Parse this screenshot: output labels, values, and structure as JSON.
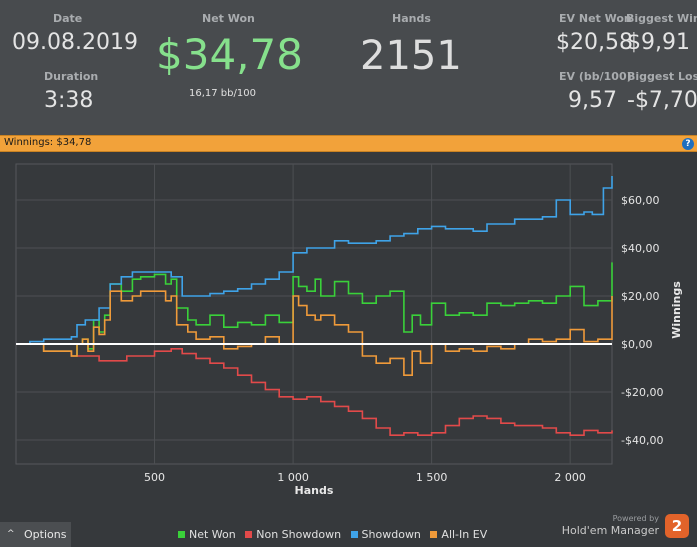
{
  "stats": {
    "date_label": "Date",
    "date_value": "09.08.2019",
    "duration_label": "Duration",
    "duration_value": "3:38",
    "net_won_label": "Net Won",
    "net_won_value": "$34,78",
    "bb_value": "16,17 bb/100",
    "hands_label": "Hands",
    "hands_value": "2151",
    "ev_net_won_label": "EV Net Won",
    "ev_net_won_value": "$20,58",
    "biggest_win_label": "Biggest Win",
    "biggest_win_value": "$9,91",
    "ev_bb_label": "EV (bb/100)",
    "ev_bb_value": "9,57",
    "biggest_loss_label": "Biggest Loss",
    "biggest_loss_value": "-$7,70"
  },
  "winnings_bar": {
    "text": "Winnings: $34,78",
    "help_icon": "?"
  },
  "chart_data": {
    "type": "line",
    "xlabel": "Hands",
    "ylabel": "Winnings",
    "xlim": [
      0,
      2151
    ],
    "ylim": [
      -50,
      75
    ],
    "x_ticks": [
      500,
      1000,
      1500,
      2000
    ],
    "x_tick_labels": [
      "500",
      "1 000",
      "1 500",
      "2 000"
    ],
    "y_ticks": [
      60,
      40,
      20,
      0,
      -20,
      -40
    ],
    "y_tick_labels": [
      "$60,00",
      "$40,00",
      "$20,00",
      "$0,00",
      "-$20,00",
      "-$40,00"
    ],
    "grid": true,
    "zero_line": true,
    "series": [
      {
        "name": "Net Won",
        "color": "#3ad13a",
        "x": [
          0,
          100,
          200,
          220,
          240,
          260,
          280,
          300,
          320,
          340,
          380,
          420,
          450,
          480,
          500,
          540,
          560,
          580,
          620,
          650,
          700,
          750,
          800,
          850,
          900,
          950,
          1000,
          1020,
          1050,
          1080,
          1100,
          1150,
          1200,
          1250,
          1300,
          1350,
          1400,
          1430,
          1460,
          1500,
          1550,
          1600,
          1650,
          1700,
          1750,
          1800,
          1850,
          1900,
          1950,
          2000,
          2050,
          2100,
          2151
        ],
        "y": [
          0,
          -3,
          -5,
          0,
          2,
          -2,
          10,
          5,
          12,
          25,
          22,
          27,
          28,
          28,
          29,
          25,
          27,
          15,
          10,
          8,
          12,
          7,
          9,
          8,
          12,
          9,
          28,
          24,
          22,
          27,
          20,
          26,
          21,
          17,
          20,
          22,
          5,
          12,
          8,
          17,
          12,
          13,
          12,
          17,
          16,
          17,
          18,
          17,
          20,
          24,
          16,
          18,
          34
        ]
      },
      {
        "name": "Non Showdown",
        "color": "#e24a4a",
        "x": [
          0,
          100,
          200,
          300,
          400,
          500,
          560,
          600,
          650,
          700,
          750,
          800,
          850,
          900,
          950,
          1000,
          1050,
          1100,
          1150,
          1200,
          1250,
          1300,
          1350,
          1400,
          1450,
          1500,
          1550,
          1600,
          1650,
          1700,
          1750,
          1800,
          1850,
          1900,
          1950,
          2000,
          2050,
          2100,
          2151
        ],
        "y": [
          0,
          -3,
          -5,
          -7,
          -5,
          -3,
          -2,
          -4,
          -6,
          -8,
          -10,
          -13,
          -16,
          -19,
          -22,
          -23,
          -22,
          -24,
          -26,
          -28,
          -31,
          -35,
          -38,
          -37,
          -38,
          -37,
          -34,
          -31,
          -30,
          -31,
          -33,
          -34,
          -34,
          -35,
          -37,
          -38,
          -36,
          -37,
          -36
        ]
      },
      {
        "name": "Showdown",
        "color": "#3fa3e8",
        "x": [
          0,
          50,
          100,
          200,
          220,
          250,
          300,
          340,
          380,
          420,
          450,
          500,
          560,
          600,
          650,
          700,
          750,
          800,
          850,
          900,
          950,
          1000,
          1050,
          1100,
          1150,
          1200,
          1250,
          1300,
          1350,
          1400,
          1450,
          1500,
          1550,
          1600,
          1650,
          1700,
          1750,
          1800,
          1850,
          1900,
          1950,
          2000,
          2050,
          2080,
          2120,
          2151
        ],
        "y": [
          0,
          1,
          2,
          3,
          8,
          10,
          15,
          25,
          28,
          30,
          30,
          30,
          28,
          20,
          20,
          21,
          22,
          23,
          25,
          27,
          30,
          38,
          40,
          40,
          43,
          42,
          42,
          43,
          45,
          46,
          48,
          49,
          48,
          48,
          47,
          50,
          50,
          52,
          52,
          53,
          60,
          54,
          55,
          54,
          65,
          70
        ]
      },
      {
        "name": "All-In EV",
        "color": "#ef9a3a",
        "x": [
          0,
          100,
          200,
          220,
          240,
          260,
          280,
          300,
          320,
          340,
          380,
          420,
          450,
          480,
          500,
          540,
          560,
          580,
          620,
          650,
          700,
          750,
          800,
          850,
          900,
          950,
          1000,
          1020,
          1050,
          1080,
          1100,
          1150,
          1200,
          1250,
          1300,
          1350,
          1400,
          1430,
          1460,
          1500,
          1550,
          1600,
          1650,
          1700,
          1750,
          1800,
          1850,
          1900,
          1950,
          2000,
          2050,
          2100,
          2151
        ],
        "y": [
          0,
          -3,
          -5,
          0,
          2,
          -3,
          7,
          4,
          10,
          22,
          18,
          20,
          22,
          22,
          22,
          18,
          20,
          8,
          5,
          2,
          3,
          -2,
          -1,
          0,
          3,
          0,
          20,
          16,
          12,
          10,
          12,
          8,
          5,
          -5,
          -8,
          -6,
          -13,
          -3,
          -8,
          0,
          -3,
          -2,
          -3,
          -1,
          -2,
          0,
          2,
          1,
          2,
          6,
          1,
          2,
          20
        ]
      }
    ]
  },
  "footer": {
    "options_label": "Options",
    "options_chevron": "^",
    "legend": [
      "Net Won",
      "Non Showdown",
      "Showdown",
      "All-In EV"
    ],
    "powered_by": "Powered by",
    "brand": "Hold'em Manager",
    "brand_badge": "2"
  }
}
